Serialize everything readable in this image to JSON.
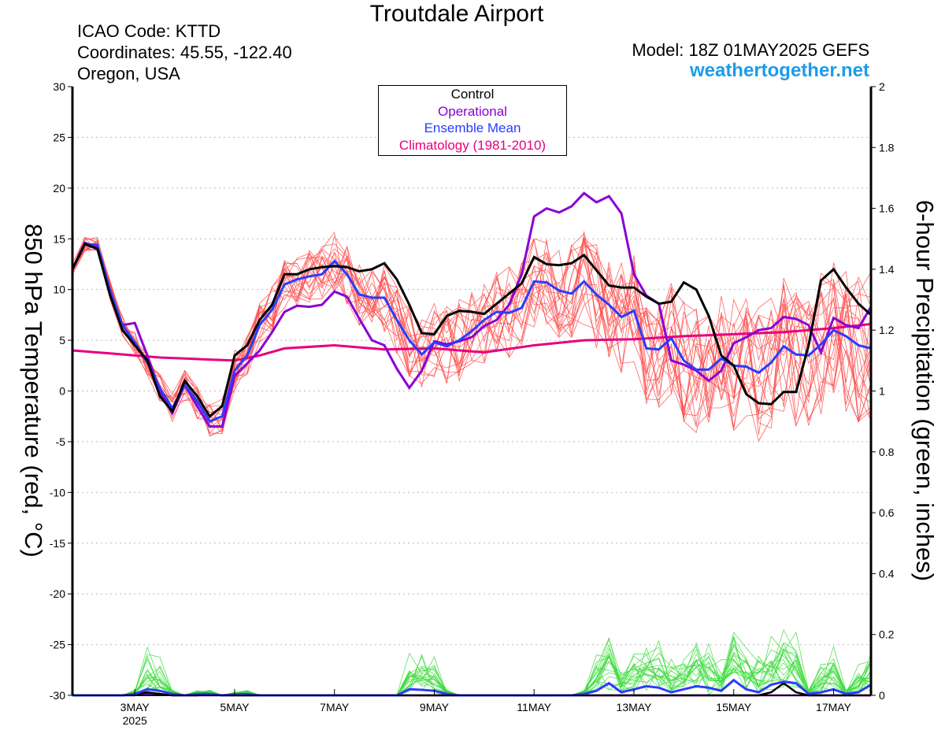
{
  "header": {
    "title": "Troutdale Airport",
    "icao": "ICAO Code: KTTD",
    "coordinates": "Coordinates: 45.55, -122.40",
    "location": "Oregon, USA",
    "model": "Model: 18Z 01MAY2025 GEFS",
    "site": "weathertogether.net"
  },
  "legend": [
    {
      "label": "Control",
      "color": "#000000"
    },
    {
      "label": "Operational",
      "color": "#8a00d4"
    },
    {
      "label": "Ensemble Mean",
      "color": "#2a3cff"
    },
    {
      "label": "Climatology (1981-2010)",
      "color": "#e6007e"
    }
  ],
  "colors": {
    "members_temp": "#ff4a4a",
    "members_precip": "#3ddc3d",
    "control": "#000000",
    "operational": "#8a00d4",
    "ensemble_mean": "#2a3cff",
    "climatology": "#e6007e",
    "grid": "#bbbbbb"
  },
  "chart_data": {
    "type": "line",
    "x_unit": "days since 01 May 2025 00Z",
    "xlim": [
      1.75,
      17.75
    ],
    "x_ticks": [
      {
        "x": 3,
        "label": "3MAY",
        "sublabel": "2025"
      },
      {
        "x": 5,
        "label": "5MAY"
      },
      {
        "x": 7,
        "label": "7MAY"
      },
      {
        "x": 9,
        "label": "9MAY"
      },
      {
        "x": 11,
        "label": "11MAY"
      },
      {
        "x": 13,
        "label": "13MAY"
      },
      {
        "x": 15,
        "label": "15MAY"
      },
      {
        "x": 17,
        "label": "17MAY"
      }
    ],
    "y_left": {
      "label": "850 hPa Temperature (red, °C)",
      "lim": [
        -30,
        30
      ],
      "ticks": [
        30,
        25,
        20,
        15,
        10,
        5,
        0,
        -5,
        -10,
        -15,
        -20,
        -25,
        -30
      ],
      "tick_labels": [
        "30",
        "25",
        "20",
        "15",
        "10",
        "5",
        "0",
        "-5",
        "-10",
        "-15",
        "-20",
        "-25",
        "-30"
      ]
    },
    "y_right": {
      "label": "6-hour Precipitation (green, inches)",
      "lim": [
        0,
        2
      ],
      "ticks": [
        2,
        1.8,
        1.6,
        1.4,
        1.2,
        1,
        0.8,
        0.6,
        0.4,
        0.2,
        0
      ],
      "tick_labels": [
        "2",
        "1.8",
        "1.6",
        "1.4",
        "1.2",
        "1",
        "0.8",
        "0.6",
        "0.4",
        "0.2",
        "0"
      ]
    },
    "grid": "dotted horizontal",
    "legend_position": "top-center",
    "temperature": {
      "control": {
        "x": [
          1.75,
          2.0,
          2.25,
          2.5,
          2.75,
          3.0,
          3.25,
          3.5,
          3.75,
          4.0,
          4.25,
          4.5,
          4.75,
          5.0,
          5.25,
          5.5,
          5.75,
          6.0,
          6.25,
          6.5,
          6.75,
          7.0,
          7.25,
          7.5,
          7.75,
          8.0,
          8.25,
          8.5,
          8.75,
          9.0,
          9.25,
          9.5,
          9.75,
          10.0,
          10.25,
          10.5,
          10.75,
          11.0,
          11.25,
          11.5,
          11.75,
          12.0,
          12.25,
          12.5,
          12.75,
          13.0,
          13.25,
          13.5,
          13.75,
          14.0,
          14.25,
          14.5,
          14.75,
          15.0,
          15.25,
          15.5,
          15.75,
          16.0,
          16.25,
          16.5,
          16.75,
          17.0,
          17.25,
          17.5,
          17.75
        ],
        "y": [
          12.0,
          14.5,
          14.0,
          9.5,
          6.0,
          4.5,
          3.0,
          -0.5,
          -2.0,
          1.0,
          -0.5,
          -2.5,
          -1.5,
          3.5,
          4.5,
          7.0,
          8.5,
          11.5,
          11.5,
          12.0,
          12.2,
          12.3,
          12.2,
          11.8,
          12.0,
          12.6,
          11.0,
          8.5,
          5.7,
          5.6,
          7.4,
          7.9,
          7.8,
          7.6,
          8.6,
          9.6,
          10.6,
          13.2,
          12.5,
          12.4,
          12.6,
          13.4,
          11.9,
          10.4,
          10.2,
          10.2,
          9.3,
          8.6,
          8.8,
          10.7,
          10.0,
          7.4,
          3.5,
          2.5,
          -0.3,
          -1.2,
          -1.3,
          -0.1,
          -0.1,
          4.5,
          10.9,
          12.0,
          10.2,
          8.6,
          7.5
        ]
      },
      "operational": {
        "x": [
          1.75,
          2.0,
          2.25,
          2.5,
          2.75,
          3.0,
          3.25,
          3.5,
          3.75,
          4.0,
          4.25,
          4.5,
          4.75,
          5.0,
          5.25,
          5.5,
          5.75,
          6.0,
          6.25,
          6.5,
          6.75,
          7.0,
          7.25,
          7.5,
          7.75,
          8.0,
          8.25,
          8.5,
          8.75,
          9.0,
          9.25,
          9.5,
          9.75,
          10.0,
          10.25,
          10.5,
          10.75,
          11.0,
          11.25,
          11.5,
          11.75,
          12.0,
          12.25,
          12.5,
          12.75,
          13.0,
          13.25,
          13.5,
          13.75,
          14.0,
          14.25,
          14.5,
          14.75,
          15.0,
          15.25,
          15.5,
          15.75,
          16.0,
          16.25,
          16.5,
          16.75,
          17.0,
          17.25,
          17.5,
          17.75
        ],
        "y": [
          12.0,
          14.6,
          14.2,
          9.8,
          6.5,
          6.7,
          3.5,
          0.0,
          -2.2,
          0.6,
          -1.5,
          -3.5,
          -3.5,
          1.5,
          2.7,
          4.0,
          5.8,
          7.8,
          8.4,
          8.3,
          8.5,
          9.8,
          9.3,
          7.1,
          5.0,
          4.5,
          2.2,
          0.3,
          2.0,
          4.9,
          4.6,
          4.9,
          5.3,
          6.4,
          7.0,
          8.5,
          11.5,
          17.2,
          18.0,
          17.6,
          18.2,
          19.5,
          18.6,
          19.2,
          17.5,
          11.5,
          9.4,
          8.6,
          3.0,
          2.6,
          2.0,
          1.0,
          2.0,
          4.7,
          5.3,
          6.0,
          6.2,
          7.3,
          7.1,
          6.5,
          3.8,
          7.2,
          6.5,
          6.2,
          8.3
        ]
      },
      "ensemble_mean": {
        "x": [
          1.75,
          2.0,
          2.25,
          2.5,
          2.75,
          3.0,
          3.25,
          3.5,
          3.75,
          4.0,
          4.25,
          4.5,
          4.75,
          5.0,
          5.25,
          5.5,
          5.75,
          6.0,
          6.25,
          6.5,
          6.75,
          7.0,
          7.25,
          7.5,
          7.75,
          8.0,
          8.25,
          8.5,
          8.75,
          9.0,
          9.25,
          9.5,
          9.75,
          10.0,
          10.25,
          10.5,
          10.75,
          11.0,
          11.25,
          11.5,
          11.75,
          12.0,
          12.25,
          12.5,
          12.75,
          13.0,
          13.25,
          13.5,
          13.75,
          14.0,
          14.25,
          14.5,
          14.75,
          15.0,
          15.25,
          15.5,
          15.75,
          16.0,
          16.25,
          16.5,
          16.75,
          17.0,
          17.25,
          17.5,
          17.75
        ],
        "y": [
          12.0,
          14.5,
          14.4,
          10.0,
          6.5,
          4.8,
          2.8,
          0.3,
          -1.7,
          0.6,
          -1.0,
          -3.0,
          -2.5,
          2.0,
          3.5,
          6.5,
          8.0,
          10.5,
          11.0,
          11.3,
          11.5,
          12.8,
          11.5,
          9.5,
          9.2,
          9.2,
          7.0,
          5.0,
          3.6,
          4.8,
          4.4,
          5.0,
          5.9,
          7.0,
          7.8,
          7.7,
          8.2,
          10.8,
          10.7,
          9.9,
          9.6,
          10.8,
          9.5,
          8.5,
          7.3,
          7.9,
          4.2,
          4.1,
          5.2,
          3.0,
          2.1,
          2.1,
          3.2,
          2.5,
          2.4,
          1.8,
          2.8,
          4.4,
          3.6,
          3.5,
          4.6,
          6.0,
          5.4,
          4.5,
          4.2
        ]
      },
      "climatology": {
        "x": [
          1.75,
          2.5,
          3.0,
          3.5,
          4.0,
          4.5,
          5.0,
          5.5,
          6.0,
          7.0,
          8.0,
          9.0,
          10.0,
          11.0,
          12.0,
          13.0,
          14.0,
          15.0,
          16.0,
          17.0,
          17.75
        ],
        "y": [
          4.0,
          3.7,
          3.5,
          3.3,
          3.2,
          3.1,
          3.0,
          3.5,
          4.2,
          4.5,
          4.1,
          4.2,
          3.8,
          4.5,
          5.0,
          5.1,
          5.4,
          5.6,
          5.8,
          6.2,
          6.6
        ]
      }
    },
    "precipitation": {
      "x": [
        1.75,
        2.0,
        2.25,
        2.5,
        2.75,
        3.0,
        3.25,
        3.5,
        3.75,
        4.0,
        4.25,
        4.5,
        4.75,
        5.0,
        5.25,
        5.5,
        5.75,
        6.0,
        6.25,
        6.5,
        6.75,
        7.0,
        7.25,
        7.5,
        7.75,
        8.0,
        8.25,
        8.5,
        8.75,
        9.0,
        9.25,
        9.5,
        9.75,
        10.0,
        10.25,
        10.5,
        10.75,
        11.0,
        11.25,
        11.5,
        11.75,
        12.0,
        12.25,
        12.5,
        12.75,
        13.0,
        13.25,
        13.5,
        13.75,
        14.0,
        14.25,
        14.5,
        14.75,
        15.0,
        15.25,
        15.5,
        15.75,
        16.0,
        16.25,
        16.5,
        16.75,
        17.0,
        17.25,
        17.5,
        17.75
      ],
      "ensemble_mean": [
        0,
        0,
        0,
        0,
        0,
        0.005,
        0.02,
        0.015,
        0.005,
        0,
        0.005,
        0.005,
        0,
        0.003,
        0.005,
        0,
        0,
        0,
        0,
        0,
        0,
        0,
        0,
        0,
        0,
        0,
        0,
        0.02,
        0.018,
        0.015,
        0.005,
        0,
        0,
        0,
        0,
        0,
        0,
        0,
        0,
        0,
        0,
        0.005,
        0.015,
        0.04,
        0.01,
        0.02,
        0.03,
        0.025,
        0.01,
        0.02,
        0.03,
        0.025,
        0.015,
        0.05,
        0.02,
        0.01,
        0.035,
        0.045,
        0.04,
        0.005,
        0.01,
        0.02,
        0.005,
        0.01,
        0.035
      ],
      "control": [
        0,
        0,
        0,
        0,
        0,
        0.003,
        0.01,
        0.005,
        0,
        0,
        0,
        0.005,
        0,
        0,
        0,
        0,
        0,
        0,
        0,
        0,
        0,
        0,
        0,
        0,
        0,
        0,
        0,
        0,
        0,
        0,
        0,
        0,
        0,
        0,
        0,
        0,
        0,
        0,
        0,
        0,
        0,
        0,
        0,
        0,
        0,
        0,
        0,
        0,
        0,
        0,
        0,
        0,
        0,
        0,
        0,
        0,
        0.01,
        0.04,
        0.01,
        0,
        0,
        0,
        0,
        0,
        0
      ],
      "operational": [
        0,
        0,
        0,
        0,
        0,
        0,
        0.005,
        0.005,
        0,
        0,
        0,
        0,
        0,
        0,
        0,
        0,
        0,
        0,
        0,
        0,
        0,
        0,
        0,
        0,
        0,
        0,
        0,
        0,
        0,
        0,
        0,
        0,
        0,
        0,
        0,
        0,
        0,
        0,
        0,
        0,
        0,
        0,
        0,
        0,
        0,
        0,
        0,
        0,
        0,
        0,
        0,
        0,
        0,
        0,
        0,
        0,
        0,
        0,
        0,
        0,
        0,
        0,
        0,
        0,
        0
      ]
    }
  }
}
